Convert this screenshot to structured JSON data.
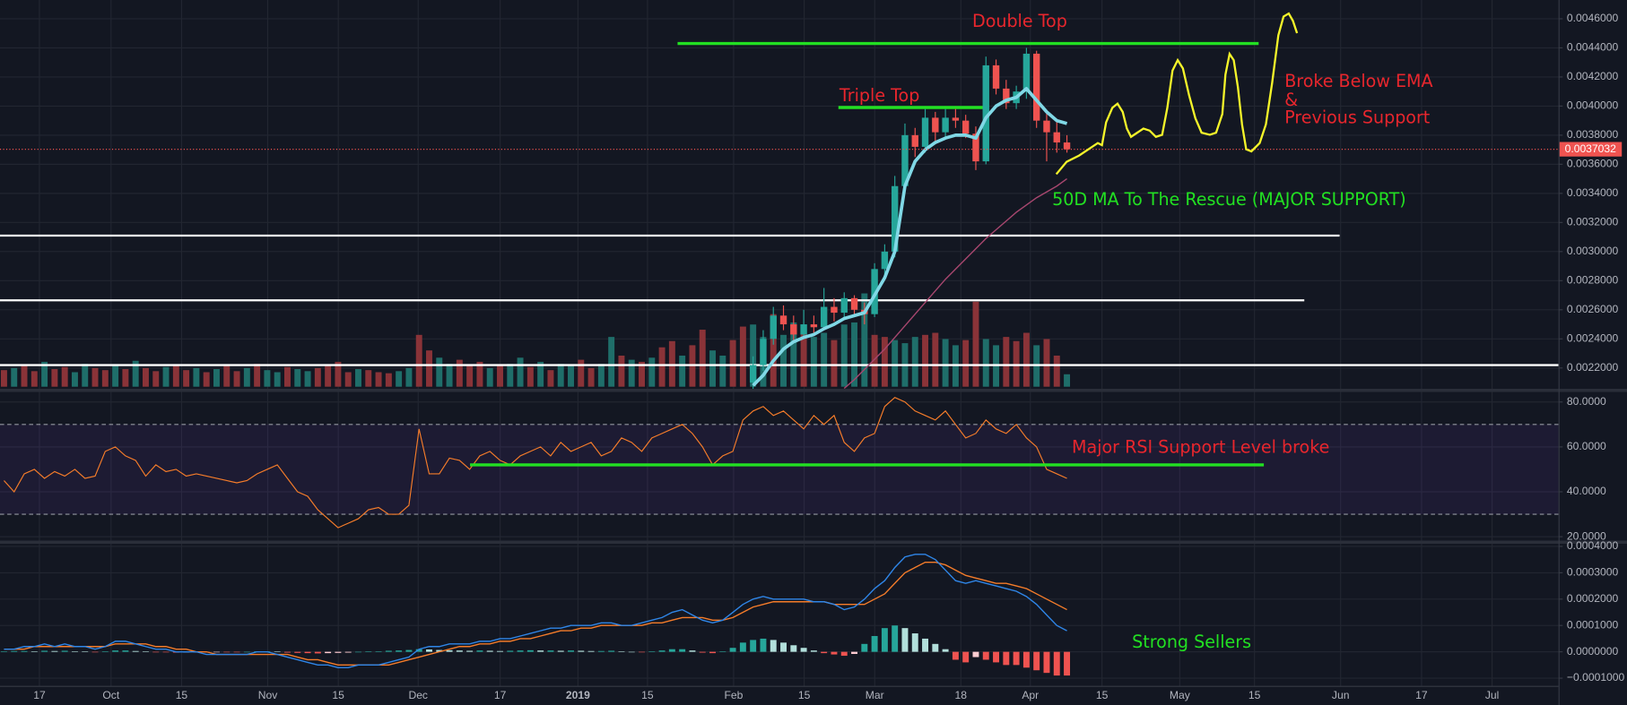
{
  "chart_data": [
    {
      "type": "candlestick",
      "ylim": [
        0.002057,
        0.004729
      ],
      "yticks": [
        {
          "value": 0.0022,
          "label": "0.0022000"
        },
        {
          "value": 0.0024,
          "label": "0.0024000"
        },
        {
          "value": 0.0026,
          "label": "0.0026000"
        },
        {
          "value": 0.0028,
          "label": "0.0028000"
        },
        {
          "value": 0.003,
          "label": "0.0030000"
        },
        {
          "value": 0.0032,
          "label": "0.0032000"
        },
        {
          "value": 0.0034,
          "label": "0.0034000"
        },
        {
          "value": 0.0036,
          "label": "0.0036000"
        },
        {
          "value": 0.0038,
          "label": "0.0038000"
        },
        {
          "value": 0.004,
          "label": "0.0040000"
        },
        {
          "value": 0.0042,
          "label": "0.0042000"
        },
        {
          "value": 0.0044,
          "label": "0.0044000"
        },
        {
          "value": 0.0046,
          "label": "0.0046000"
        }
      ],
      "grid": true,
      "up_color": "#26a69a",
      "down_color": "#ef5350",
      "open": [
        0.0021,
        0.00222,
        0.0024,
        0.00256,
        0.0025,
        0.00243,
        0.0025,
        0.00248,
        0.00262,
        0.00258,
        0.00268,
        0.0026,
        0.00257,
        0.00288,
        0.003,
        0.00345,
        0.0038,
        0.00372,
        0.00392,
        0.00382,
        0.00392,
        0.0039,
        0.00381,
        0.00362,
        0.00428,
        0.00412,
        0.00402,
        0.0041,
        0.00436,
        0.0039,
        0.00382,
        0.00375
      ],
      "high": [
        0.00228,
        0.00246,
        0.00262,
        0.00263,
        0.00256,
        0.0026,
        0.00256,
        0.00275,
        0.00268,
        0.00272,
        0.0027,
        0.00265,
        0.00292,
        0.00305,
        0.00352,
        0.00388,
        0.00385,
        0.00398,
        0.00396,
        0.00398,
        0.00398,
        0.00394,
        0.00386,
        0.00434,
        0.00432,
        0.00418,
        0.00414,
        0.0044,
        0.00438,
        0.00396,
        0.0039,
        0.0038
      ],
      "low": [
        0.00205,
        0.00218,
        0.00236,
        0.00246,
        0.00238,
        0.0024,
        0.00244,
        0.00246,
        0.00252,
        0.00255,
        0.00256,
        0.0025,
        0.00255,
        0.00284,
        0.00296,
        0.0034,
        0.00365,
        0.00368,
        0.00375,
        0.00378,
        0.00385,
        0.00378,
        0.00356,
        0.0036,
        0.00408,
        0.00398,
        0.00398,
        0.00405,
        0.00385,
        0.00362,
        0.00368,
        0.00368
      ],
      "close": [
        0.00222,
        0.0024,
        0.00256,
        0.0025,
        0.00243,
        0.0025,
        0.00248,
        0.00262,
        0.00258,
        0.00268,
        0.0026,
        0.00257,
        0.00288,
        0.003,
        0.00345,
        0.0038,
        0.00372,
        0.00392,
        0.00382,
        0.00392,
        0.0039,
        0.00381,
        0.00362,
        0.00428,
        0.00412,
        0.00402,
        0.0041,
        0.00436,
        0.0039,
        0.00382,
        0.00375,
        0.0037032
      ],
      "ema": {
        "color": "#80d8e6",
        "values": [
          0.00208,
          0.00215,
          0.00225,
          0.00233,
          0.00238,
          0.00241,
          0.00243,
          0.00247,
          0.0025,
          0.00254,
          0.00256,
          0.00258,
          0.0027,
          0.00282,
          0.003,
          0.00345,
          0.00362,
          0.0037,
          0.00375,
          0.00378,
          0.0038,
          0.0038,
          0.00378,
          0.00392,
          0.004,
          0.00404,
          0.00406,
          0.00412,
          0.00404,
          0.00396,
          0.0039,
          0.00388
        ]
      },
      "ma": {
        "color": "#a8476f",
        "values": [
          null,
          null,
          null,
          null,
          null,
          null,
          null,
          null,
          null,
          0.00206,
          0.00212,
          0.00219,
          0.00226,
          0.00233,
          0.00241,
          0.00249,
          0.00257,
          0.00265,
          0.00273,
          0.00281,
          0.00288,
          0.00295,
          0.00302,
          0.00309,
          0.00315,
          0.00321,
          0.00327,
          0.00332,
          0.00337,
          0.00341,
          0.00345,
          0.0035
        ]
      },
      "volume": {
        "up_color": "#1f6e6a",
        "down_color": "#8a3338",
        "values": [
          16,
          18,
          20,
          15,
          24,
          17,
          19,
          14,
          22,
          18,
          16,
          20,
          17,
          25,
          18,
          15,
          19,
          21,
          16,
          18,
          14,
          17,
          20,
          15,
          18,
          22,
          16,
          14,
          19,
          17,
          15,
          18,
          20,
          24,
          14,
          17,
          16,
          14,
          13,
          15,
          18,
          50,
          35,
          28,
          22,
          26,
          20,
          24,
          18,
          20,
          22,
          28,
          19,
          24,
          16,
          22,
          20,
          26,
          18,
          22,
          48,
          30,
          26,
          24,
          28,
          38,
          44,
          30,
          40,
          55,
          35,
          30,
          45,
          58,
          60,
          48,
          70,
          50,
          62,
          55,
          48,
          52,
          45,
          60,
          62,
          90,
          50,
          48,
          45,
          42,
          48,
          50,
          52,
          46,
          40,
          45,
          82,
          46,
          40,
          48,
          44,
          52,
          40,
          46,
          30,
          12
        ],
        "directions": "duddudduuddududduddududduduuduudddduddduudduuddduduududuudduudududdudduudduuduuduuduuudduuudduudduuddduddud"
      },
      "last_price": {
        "value": 0.0037032,
        "color": "#ef5350"
      },
      "levels": [
        {
          "value": 0.00311,
          "color": "#ffffff"
        },
        {
          "value": 0.002665,
          "color": "#ffffff"
        },
        {
          "value": 0.00222,
          "color": "#ffffff"
        },
        {
          "value": 0.00443,
          "color": "#22e022"
        },
        {
          "value": 0.00399,
          "color": "#22e022"
        }
      ],
      "annotations": [
        {
          "text": "Double Top",
          "color": "#e8262d"
        },
        {
          "text": "Triple Top",
          "color": "#e8262d"
        },
        {
          "text": "Broke Below EMA",
          "color": "#e8262d"
        },
        {
          "text": "&",
          "color": "#e8262d"
        },
        {
          "text": "Previous Support",
          "color": "#e8262d"
        },
        {
          "text": "50D MA To The Rescue (MAJOR SUPPORT)",
          "color": "#22e022"
        }
      ]
    },
    {
      "type": "rsi",
      "ylim": [
        18,
        84.5
      ],
      "yticks": [
        {
          "value": 20,
          "label": "20.0000"
        },
        {
          "value": 40,
          "label": "40.0000"
        },
        {
          "value": 60,
          "label": "60.0000"
        },
        {
          "value": 80,
          "label": "80.0000"
        }
      ],
      "color": "#f57c2a",
      "band": [
        30,
        70
      ],
      "band_color": "#673ab7",
      "values": [
        45,
        40,
        48,
        50,
        46,
        49,
        47,
        50,
        46,
        47,
        58,
        60,
        56,
        54,
        47,
        52,
        49,
        50,
        47,
        48,
        47,
        46,
        45,
        44,
        45,
        48,
        50,
        52,
        46,
        40,
        38,
        32,
        28,
        24,
        26,
        28,
        32,
        33,
        30,
        30,
        34,
        68,
        48,
        48,
        55,
        54,
        50,
        56,
        58,
        54,
        52,
        56,
        58,
        60,
        56,
        62,
        58,
        60,
        62,
        56,
        58,
        64,
        62,
        58,
        64,
        66,
        68,
        70,
        66,
        60,
        52,
        56,
        58,
        72,
        76,
        78,
        74,
        76,
        72,
        68,
        74,
        70,
        74,
        62,
        58,
        64,
        66,
        78,
        82,
        80,
        76,
        74,
        72,
        76,
        70,
        64,
        66,
        72,
        68,
        66,
        70,
        64,
        60,
        50,
        48,
        46
      ],
      "support": {
        "value": 52,
        "color": "#22e022"
      },
      "annotation": {
        "text": "Major RSI Support Level broke",
        "color": "#e8262d"
      }
    },
    {
      "type": "macd",
      "ylim": [
        -0.000131,
        0.000412
      ],
      "yticks": [
        {
          "value": -0.0001,
          "label": "−0.0001000"
        },
        {
          "value": 0,
          "label": "0.0000000"
        },
        {
          "value": 0.0001,
          "label": "0.0001000"
        },
        {
          "value": 0.0002,
          "label": "0.0002000"
        },
        {
          "value": 0.0003,
          "label": "0.0003000"
        },
        {
          "value": 0.0004,
          "label": "0.0004000"
        }
      ],
      "macd": {
        "color": "#2f86e8",
        "values": [
          1e-05,
          1e-05,
          2e-05,
          2e-05,
          3e-05,
          2e-05,
          3e-05,
          2e-05,
          2e-05,
          1e-05,
          2e-05,
          4e-05,
          4e-05,
          3e-05,
          2e-05,
          1e-05,
          1e-05,
          0,
          0,
          0,
          -1e-05,
          -1e-05,
          -1e-05,
          -1e-05,
          -1e-05,
          0,
          0,
          -1e-05,
          -2e-05,
          -3e-05,
          -4e-05,
          -5e-05,
          -5e-05,
          -6e-05,
          -6e-05,
          -5e-05,
          -5e-05,
          -5e-05,
          -4e-05,
          -3e-05,
          -2e-05,
          1e-05,
          2e-05,
          2e-05,
          3e-05,
          3e-05,
          3e-05,
          4e-05,
          4e-05,
          5e-05,
          5e-05,
          6e-05,
          7e-05,
          8e-05,
          9e-05,
          9e-05,
          0.0001,
          0.0001,
          0.0001,
          0.00011,
          0.00011,
          0.0001,
          0.0001,
          0.00011,
          0.00012,
          0.00013,
          0.00015,
          0.00016,
          0.00014,
          0.00012,
          0.00011,
          0.00012,
          0.00015,
          0.00018,
          0.0002,
          0.00021,
          0.0002,
          0.0002,
          0.0002,
          0.0002,
          0.00019,
          0.00019,
          0.00018,
          0.00016,
          0.00017,
          0.0002,
          0.00024,
          0.00027,
          0.00032,
          0.00036,
          0.00037,
          0.00037,
          0.00035,
          0.00031,
          0.00027,
          0.00026,
          0.00027,
          0.00026,
          0.00025,
          0.00024,
          0.00023,
          0.00021,
          0.00018,
          0.00014,
          0.0001,
          8e-05
        ]
      },
      "signal": {
        "color": "#f57c2a",
        "values": [
          1e-05,
          1e-05,
          1e-05,
          2e-05,
          2e-05,
          2e-05,
          2e-05,
          2e-05,
          2e-05,
          2e-05,
          2e-05,
          3e-05,
          3e-05,
          3e-05,
          3e-05,
          2e-05,
          2e-05,
          1e-05,
          1e-05,
          0,
          0,
          -1e-05,
          -1e-05,
          -1e-05,
          -1e-05,
          -1e-05,
          -1e-05,
          -1e-05,
          -1e-05,
          -2e-05,
          -3e-05,
          -3e-05,
          -4e-05,
          -5e-05,
          -5e-05,
          -5e-05,
          -5e-05,
          -5e-05,
          -5e-05,
          -4e-05,
          -3e-05,
          -2e-05,
          -1e-05,
          0,
          1e-05,
          2e-05,
          2e-05,
          3e-05,
          3e-05,
          4e-05,
          4e-05,
          5e-05,
          5e-05,
          6e-05,
          7e-05,
          8e-05,
          8e-05,
          9e-05,
          9e-05,
          0.0001,
          0.0001,
          0.0001,
          0.0001,
          0.0001,
          0.00011,
          0.00011,
          0.00012,
          0.00013,
          0.00013,
          0.00013,
          0.00012,
          0.00012,
          0.00013,
          0.00015,
          0.00017,
          0.00018,
          0.00019,
          0.00019,
          0.00019,
          0.00019,
          0.00019,
          0.00019,
          0.00018,
          0.00018,
          0.00018,
          0.00018,
          0.0002,
          0.00022,
          0.00026,
          0.0003,
          0.00032,
          0.00034,
          0.00034,
          0.00033,
          0.00031,
          0.00029,
          0.00028,
          0.00027,
          0.00026,
          0.00026,
          0.00025,
          0.00024,
          0.00022,
          0.0002,
          0.00018,
          0.00016
        ]
      },
      "histogram": {
        "values": [
          2e-06,
          3e-06,
          3e-06,
          2e-06,
          4e-06,
          3e-06,
          4e-06,
          2e-06,
          1e-06,
          -1e-06,
          2e-06,
          5e-06,
          5e-06,
          3e-06,
          1e-06,
          -2e-06,
          -2e-06,
          -3e-06,
          -2e-06,
          -1e-06,
          -2e-06,
          -1e-06,
          -1e-06,
          -1e-06,
          0,
          2e-06,
          2e-06,
          1e-06,
          -3e-06,
          -4e-06,
          -5e-06,
          -6e-06,
          -5e-06,
          -4e-06,
          -3e-06,
          0,
          1e-06,
          2e-06,
          4e-06,
          5e-06,
          7e-06,
          1e-05,
          9e-06,
          7e-06,
          6e-06,
          5e-06,
          4e-06,
          5e-06,
          4e-06,
          3e-06,
          4e-06,
          5e-06,
          6e-06,
          5e-06,
          5e-06,
          4e-06,
          5e-06,
          4e-06,
          3e-06,
          3e-06,
          4e-06,
          2e-06,
          0,
          -2e-06,
          2e-06,
          5e-06,
          1e-05,
          1e-05,
          5e-06,
          -3e-06,
          -5e-06,
          2e-06,
          1.5e-05,
          3.5e-05,
          4.5e-05,
          5e-05,
          4.5e-05,
          3.5e-05,
          2.5e-05,
          1.5e-05,
          5e-06,
          -5e-06,
          -1e-05,
          -1.5e-05,
          -8e-06,
          3e-05,
          6e-05,
          9e-05,
          0.0001,
          9e-05,
          7e-05,
          5e-05,
          3e-05,
          1e-05,
          -3e-05,
          -4e-05,
          -2e-05,
          -3e-05,
          -4e-05,
          -5e-05,
          -5e-05,
          -6e-05,
          -7e-05,
          -8e-05,
          -9e-05,
          -9e-05
        ],
        "up_color": "#26a69a",
        "up_fading_color": "#b2dfdb",
        "down_color": "#ef5350",
        "down_fading_color": "#ffcdd2"
      },
      "annotation": {
        "text": "Strong Sellers",
        "color": "#22e022"
      }
    }
  ],
  "x_axis": {
    "labels": [
      "17",
      "Oct",
      "15",
      "Nov",
      "15",
      "Dec",
      "17",
      "2019",
      "15",
      "Feb",
      "15",
      "Mar",
      "18",
      "Apr",
      "15",
      "May",
      "15",
      "Jun",
      "17",
      "Jul"
    ]
  }
}
